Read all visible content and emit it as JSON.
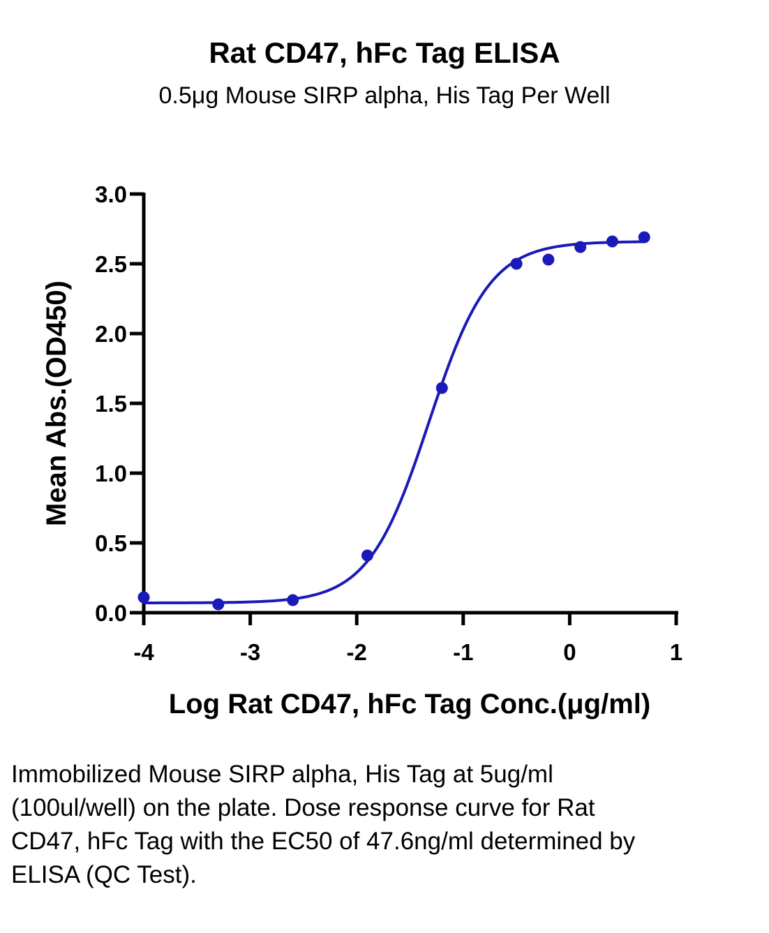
{
  "chart_data": {
    "type": "scatter",
    "title": "Rat CD47, hFc Tag ELISA",
    "subtitle": "0.5μg Mouse SIRP alpha, His Tag Per Well",
    "xlabel": "Log Rat CD47, hFc Tag Conc.(μg/ml)",
    "ylabel": "Mean Abs.(OD450)",
    "xlim": [
      -4,
      1
    ],
    "ylim": [
      0,
      3.0
    ],
    "x_ticks": [
      "-4",
      "-3",
      "-2",
      "-1",
      "0",
      "1"
    ],
    "y_ticks": [
      "0.0",
      "0.5",
      "1.0",
      "1.5",
      "2.0",
      "2.5",
      "3.0"
    ],
    "grid": false,
    "series": [
      {
        "color": "#1a1ab8",
        "points": [
          {
            "x": -4.0,
            "y": 0.11
          },
          {
            "x": -3.3,
            "y": 0.06
          },
          {
            "x": -2.6,
            "y": 0.09
          },
          {
            "x": -1.9,
            "y": 0.41
          },
          {
            "x": -1.2,
            "y": 1.61
          },
          {
            "x": -0.5,
            "y": 2.5
          },
          {
            "x": -0.2,
            "y": 2.53
          },
          {
            "x": 0.1,
            "y": 2.62
          },
          {
            "x": 0.4,
            "y": 2.66
          },
          {
            "x": 0.7,
            "y": 2.69
          }
        ],
        "fit": {
          "model": "4PL",
          "bottom": 0.07,
          "top": 2.66,
          "log_ec50": -1.322,
          "hill_slope": 1.53
        }
      }
    ]
  },
  "caption": "Immobilized Mouse SIRP alpha, His Tag at 5ug/ml (100ul/well) on the plate. Dose response curve for Rat CD47, hFc Tag with the EC50 of 47.6ng/ml determined by ELISA (QC Test)."
}
